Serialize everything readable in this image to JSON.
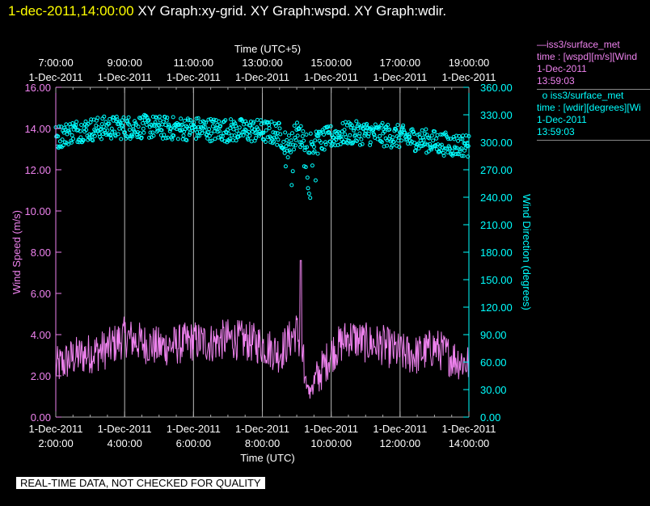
{
  "header": {
    "timestamp": "1-dec-2011,14:00:00",
    "graphs": "XY Graph:xy-grid.  XY Graph:wspd.  XY Graph:wdir."
  },
  "legend": {
    "wspd": {
      "name": "iss3/surface_met",
      "line2": "time : [wspd][m/s][Wind",
      "date": "1-Dec-2011",
      "time": "13:59:03"
    },
    "wdir": {
      "name": "iss3/surface_met",
      "line2": "time : [wdir][degrees][Wi",
      "date": "1-Dec-2011",
      "time": "13:59:03"
    }
  },
  "footer_note": "REAL-TIME DATA, NOT CHECKED FOR QUALITY",
  "chart_data": {
    "type": "line",
    "top_axis": {
      "label": "Time (UTC+5)",
      "ticks": [
        {
          "time": "7:00:00",
          "date": "1-Dec-2011"
        },
        {
          "time": "9:00:00",
          "date": "1-Dec-2011"
        },
        {
          "time": "11:00:00",
          "date": "1-Dec-2011"
        },
        {
          "time": "13:00:00",
          "date": "1-Dec-2011"
        },
        {
          "time": "15:00:00",
          "date": "1-Dec-2011"
        },
        {
          "time": "17:00:00",
          "date": "1-Dec-2011"
        },
        {
          "time": "19:00:00",
          "date": "1-Dec-2011"
        }
      ]
    },
    "bottom_axis": {
      "label": "Time (UTC)",
      "ticks": [
        {
          "date": "1-Dec-2011",
          "time": "2:00:00"
        },
        {
          "date": "1-Dec-2011",
          "time": "4:00:00"
        },
        {
          "date": "1-Dec-2011",
          "time": "6:00:00"
        },
        {
          "date": "1-Dec-2011",
          "time": "8:00:00"
        },
        {
          "date": "1-Dec-2011",
          "time": "10:00:00"
        },
        {
          "date": "1-Dec-2011",
          "time": "12:00:00"
        },
        {
          "date": "1-Dec-2011",
          "time": "14:00:00"
        }
      ],
      "range_hours_utc": [
        2,
        14
      ]
    },
    "left_axis": {
      "label": "Wind Speed (m/s)",
      "ylim": [
        0,
        16
      ],
      "ticks": [
        "0.00",
        "2.00",
        "4.00",
        "6.00",
        "8.00",
        "10.00",
        "12.00",
        "14.00",
        "16.00"
      ]
    },
    "right_axis": {
      "label": "Wind Direction (degrees)",
      "ylim": [
        0,
        360
      ],
      "ticks": [
        "0.00",
        "30.00",
        "60.00",
        "90.00",
        "120.00",
        "150.00",
        "180.00",
        "210.00",
        "240.00",
        "270.00",
        "300.00",
        "330.00",
        "360.00"
      ]
    },
    "grid": "vertical lines at bottom-axis ticks",
    "colors": {
      "wspd": "#ee82ee",
      "wdir": "#00ffff",
      "axis": "#aaaaaa",
      "background": "#000000"
    },
    "series": [
      {
        "name": "iss3/surface_met wspd",
        "style": "line",
        "x_hours_utc": [
          2.0,
          2.5,
          3.0,
          3.5,
          4.0,
          4.5,
          5.0,
          5.5,
          6.0,
          6.5,
          7.0,
          7.5,
          8.0,
          8.5,
          9.0,
          9.25,
          9.5,
          10.0,
          10.5,
          11.0,
          11.5,
          12.0,
          12.5,
          13.0,
          13.5,
          14.0
        ],
        "values": [
          2.4,
          2.9,
          3.1,
          3.3,
          3.9,
          3.6,
          3.4,
          3.5,
          3.7,
          3.6,
          3.8,
          3.7,
          3.5,
          3.1,
          4.2,
          2.2,
          1.6,
          3.1,
          3.9,
          3.6,
          3.5,
          3.1,
          3.0,
          3.4,
          2.9,
          2.6
        ]
      },
      {
        "name": "iss3/surface_met wdir",
        "style": "points",
        "x_hours_utc": [
          2.0,
          2.5,
          3.0,
          3.5,
          4.0,
          4.5,
          5.0,
          5.5,
          6.0,
          6.5,
          7.0,
          7.5,
          8.0,
          8.5,
          8.75,
          9.0,
          9.25,
          9.5,
          10.0,
          10.5,
          11.0,
          11.5,
          12.0,
          12.5,
          13.0,
          13.5,
          14.0
        ],
        "values": [
          305,
          312,
          314,
          316,
          316,
          317,
          316,
          315,
          315,
          314,
          313,
          313,
          312,
          309,
          295,
          310,
          303,
          298,
          306,
          310,
          310,
          308,
          306,
          303,
          300,
          297,
          297
        ]
      }
    ]
  }
}
